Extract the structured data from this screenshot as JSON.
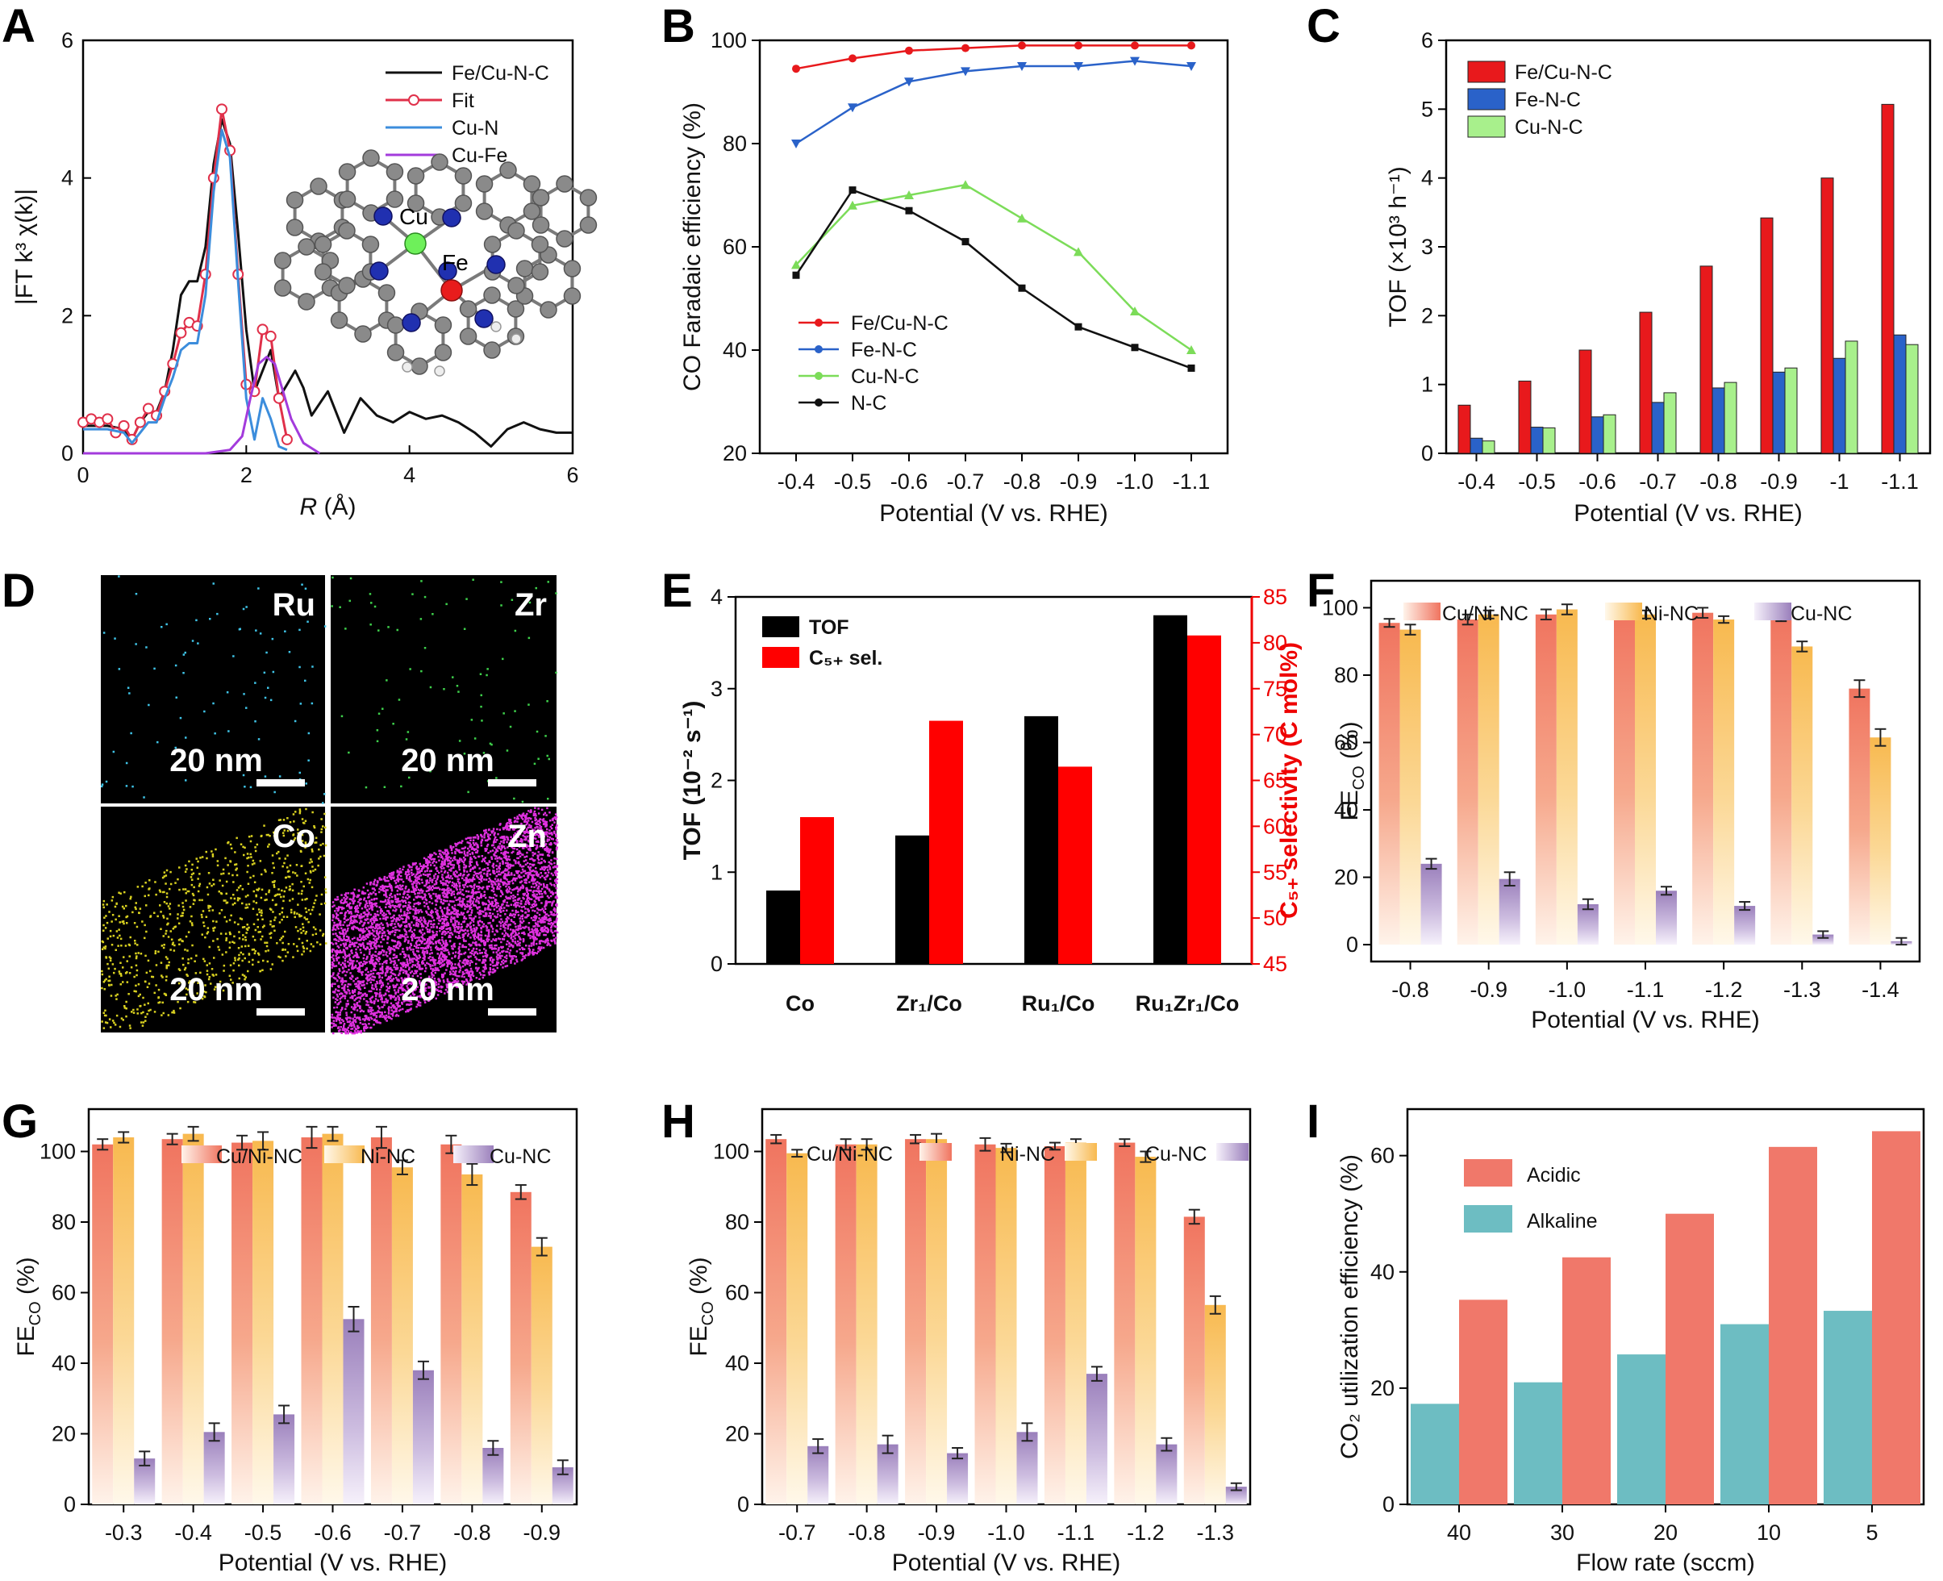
{
  "colors": {
    "red": "#e8191c",
    "blue": "#2a62c9",
    "green": "#7cdc59",
    "black": "#111111",
    "lightgreen": "#a8f08c",
    "orange": "#f0786a",
    "teal": "#6dbdc2",
    "amber": "#f7c46c",
    "purple": "#9d83bd",
    "fitred": "#e0304a",
    "cublue": "#3c8ddc",
    "cufe": "#a33bdc"
  },
  "panels": {
    "A": {
      "letter": "A",
      "xlabel_main": "R",
      "xlabel_unit": " (Å)",
      "ylabel": "|FT k³ χ(k)|"
    },
    "B": {
      "letter": "B"
    },
    "C": {
      "letter": "C"
    },
    "D": {
      "letter": "D"
    },
    "E": {
      "letter": "E"
    },
    "F": {
      "letter": "F"
    },
    "G": {
      "letter": "G"
    },
    "H": {
      "letter": "H"
    },
    "I": {
      "letter": "I"
    }
  },
  "panel_d": {
    "maps": [
      {
        "element": "Ru",
        "scale": "20 nm",
        "color": "#3fc3e6",
        "density": 90
      },
      {
        "element": "Zr",
        "scale": "20 nm",
        "color": "#3ed04b",
        "density": 90
      },
      {
        "element": "Co",
        "scale": "20 nm",
        "color": "#d8d020",
        "density": 900
      },
      {
        "element": "Zn",
        "scale": "20 nm",
        "color": "#e030e0",
        "density": 5000
      }
    ]
  },
  "panel_a_inset": {
    "atom_labels": [
      "Cu",
      "Fe"
    ]
  },
  "chart_data": [
    {
      "id": "A",
      "type": "line",
      "title": "",
      "xlabel": "R (Å)",
      "ylabel": "|FT k³ χ(k)|",
      "xlim": [
        0,
        6
      ],
      "ylim": [
        0,
        6
      ],
      "xticks": [
        "0",
        "2",
        "4",
        "6"
      ],
      "yticks": [
        "0",
        "2",
        "4",
        "6"
      ],
      "series": [
        {
          "name": "Fe/Cu-N-C",
          "color": "#111111",
          "marker": "none",
          "x": [
            0,
            0.3,
            0.5,
            0.6,
            0.7,
            0.8,
            0.9,
            1.0,
            1.1,
            1.2,
            1.3,
            1.4,
            1.5,
            1.6,
            1.7,
            1.8,
            1.9,
            2.0,
            2.1,
            2.2,
            2.3,
            2.4,
            2.5,
            2.6,
            2.7,
            2.8,
            3.0,
            3.2,
            3.4,
            3.6,
            3.8,
            4.0,
            4.2,
            4.4,
            4.6,
            4.8,
            5.0,
            5.2,
            5.4,
            5.6,
            5.8,
            6.0
          ],
          "y": [
            0.4,
            0.4,
            0.35,
            0.2,
            0.45,
            0.6,
            0.6,
            0.9,
            1.5,
            2.3,
            2.5,
            2.5,
            3.0,
            4.2,
            4.85,
            4.5,
            3.2,
            1.8,
            0.9,
            1.2,
            1.5,
            0.8,
            1.0,
            1.2,
            0.95,
            0.55,
            0.9,
            0.3,
            0.8,
            0.55,
            0.45,
            0.6,
            0.5,
            0.55,
            0.45,
            0.3,
            0.1,
            0.35,
            0.45,
            0.35,
            0.3,
            0.3
          ]
        },
        {
          "name": "Fit",
          "color": "#e0304a",
          "marker": "circle",
          "x": [
            0,
            0.1,
            0.2,
            0.3,
            0.4,
            0.5,
            0.6,
            0.7,
            0.8,
            0.9,
            1.0,
            1.1,
            1.2,
            1.3,
            1.4,
            1.5,
            1.6,
            1.7,
            1.8,
            1.9,
            2.0,
            2.1,
            2.2,
            2.3,
            2.4,
            2.5
          ],
          "y": [
            0.45,
            0.5,
            0.45,
            0.5,
            0.3,
            0.4,
            0.2,
            0.45,
            0.65,
            0.55,
            0.9,
            1.3,
            1.75,
            1.9,
            1.85,
            2.6,
            4.0,
            5.0,
            4.4,
            2.6,
            1.0,
            0.9,
            1.8,
            1.7,
            0.8,
            0.2
          ]
        },
        {
          "name": "Cu-N",
          "color": "#3c8ddc",
          "marker": "none",
          "x": [
            0,
            0.3,
            0.5,
            0.6,
            0.7,
            0.8,
            0.9,
            1.0,
            1.1,
            1.2,
            1.3,
            1.4,
            1.5,
            1.6,
            1.7,
            1.8,
            1.9,
            2.0,
            2.1,
            2.2,
            2.3,
            2.4,
            2.5
          ],
          "y": [
            0.35,
            0.35,
            0.3,
            0.15,
            0.3,
            0.45,
            0.45,
            0.8,
            1.1,
            1.5,
            1.6,
            1.6,
            2.3,
            3.8,
            4.7,
            4.3,
            2.5,
            0.8,
            0.2,
            0.8,
            0.5,
            0.1,
            0.05
          ]
        },
        {
          "name": "Cu-Fe",
          "color": "#a33bdc",
          "marker": "none",
          "x": [
            0,
            1.0,
            1.5,
            1.8,
            1.95,
            2.05,
            2.15,
            2.25,
            2.35,
            2.45,
            2.55,
            2.7,
            2.9
          ],
          "y": [
            0,
            0,
            0,
            0.05,
            0.25,
            0.8,
            1.3,
            1.4,
            1.3,
            0.9,
            0.5,
            0.15,
            0
          ]
        }
      ]
    },
    {
      "id": "B",
      "type": "line",
      "xlabel": "Potential (V vs. RHE)",
      "ylabel": "CO Faradaic efficiency (%)",
      "categories": [
        "-0.4",
        "-0.5",
        "-0.6",
        "-0.7",
        "-0.8",
        "-0.9",
        "-1.0",
        "-1.1"
      ],
      "ylim": [
        20,
        100
      ],
      "yticks": [
        "20",
        "40",
        "60",
        "80",
        "100"
      ],
      "legend_position": "bottom-left",
      "series": [
        {
          "name": "Fe/Cu-N-C",
          "color": "#e8191c",
          "marker": "circle",
          "values": [
            94.5,
            96.5,
            98,
            98.5,
            99,
            99,
            99,
            99
          ]
        },
        {
          "name": "Fe-N-C",
          "color": "#2a62c9",
          "marker": "triangle-down",
          "values": [
            80,
            87,
            92,
            94,
            95,
            95,
            96,
            95
          ]
        },
        {
          "name": "Cu-N-C",
          "color": "#7cdc59",
          "marker": "triangle-up",
          "values": [
            56.5,
            68,
            70,
            72,
            65.5,
            59,
            47.5,
            40
          ]
        },
        {
          "name": "N-C",
          "color": "#111111",
          "marker": "square",
          "values": [
            54.5,
            71,
            67,
            61,
            52,
            44.5,
            40.5,
            36.5
          ]
        }
      ]
    },
    {
      "id": "C",
      "type": "bar",
      "xlabel": "Potential (V vs. RHE)",
      "ylabel": "TOF (×10³ h⁻¹)",
      "categories": [
        "-0.4",
        "-0.5",
        "-0.6",
        "-0.7",
        "-0.8",
        "-0.9",
        "-1",
        "-1.1"
      ],
      "ylim": [
        0,
        6
      ],
      "yticks": [
        "0",
        "1",
        "2",
        "3",
        "4",
        "5",
        "6"
      ],
      "legend_position": "top-left",
      "series": [
        {
          "name": "Fe/Cu-N-C",
          "color": "#e8191c",
          "values": [
            0.7,
            1.05,
            1.5,
            2.05,
            2.72,
            3.42,
            4.0,
            5.07
          ]
        },
        {
          "name": "Fe-N-C",
          "color": "#2a62c9",
          "values": [
            0.22,
            0.38,
            0.53,
            0.74,
            0.95,
            1.18,
            1.38,
            1.72
          ]
        },
        {
          "name": "Cu-N-C",
          "color": "#a8f08c",
          "values": [
            0.18,
            0.37,
            0.56,
            0.88,
            1.03,
            1.24,
            1.63,
            1.58
          ]
        }
      ]
    },
    {
      "id": "E",
      "type": "bar",
      "xlabel": "",
      "ylabel": "TOF (10⁻² s⁻¹)",
      "ylabel_right": "C₅₊ selectivity (C mol%)",
      "categories": [
        "Co",
        "Zr₁/Co",
        "Ru₁/Co",
        "Ru₁Zr₁/Co"
      ],
      "ylim": [
        0,
        4
      ],
      "yticks": [
        "0",
        "1",
        "2",
        "3",
        "4"
      ],
      "ylim_right": [
        45,
        85
      ],
      "yticks_right": [
        "45",
        "50",
        "55",
        "60",
        "65",
        "70",
        "75",
        "80",
        "85"
      ],
      "legend_position": "top-left",
      "series": [
        {
          "name": "TOF",
          "color": "#000000",
          "axis": "left",
          "values": [
            0.8,
            1.4,
            2.7,
            3.8
          ]
        },
        {
          "name": "C₅₊ sel.",
          "color": "#ff0000",
          "axis": "right",
          "values": [
            61,
            71.5,
            66.5,
            80.8
          ]
        }
      ]
    },
    {
      "id": "F",
      "type": "bar",
      "xlabel": "Potential (V vs. RHE)",
      "ylabel": "FECO (%)",
      "categories": [
        "-0.8",
        "-0.9",
        "-1.0",
        "-1.1",
        "-1.2",
        "-1.3",
        "-1.4"
      ],
      "ylim": [
        -5,
        108
      ],
      "yticks": [
        "0",
        "20",
        "40",
        "60",
        "80",
        "100"
      ],
      "legend_position": "top",
      "series": [
        {
          "name": "Cu/Ni-NC",
          "color": "#f0786a",
          "values": [
            95.5,
            96.5,
            98,
            99.5,
            98.5,
            97.5,
            76
          ],
          "errors": [
            1.2,
            1.5,
            1.5,
            1.5,
            1.5,
            1.5,
            2.5
          ]
        },
        {
          "name": "Ni-NC",
          "color": "#f7c46c",
          "values": [
            93.5,
            98,
            99.5,
            98,
            96.5,
            88.5,
            61.5
          ],
          "errors": [
            1.5,
            1.2,
            1.5,
            1.2,
            1.0,
            1.5,
            2.5
          ]
        },
        {
          "name": "Cu-NC",
          "color": "#9d83bd",
          "values": [
            24,
            19.5,
            12,
            16,
            11.5,
            3,
            1
          ],
          "errors": [
            1.5,
            2,
            1.5,
            1.2,
            1.2,
            1,
            1
          ]
        }
      ]
    },
    {
      "id": "G",
      "type": "bar",
      "xlabel": "Potential (V vs. RHE)",
      "ylabel": "FECO (%)",
      "categories": [
        "-0.3",
        "-0.4",
        "-0.5",
        "-0.6",
        "-0.7",
        "-0.8",
        "-0.9"
      ],
      "ylim": [
        0,
        112
      ],
      "yticks": [
        "0",
        "20",
        "40",
        "60",
        "80",
        "100"
      ],
      "legend_position": "top",
      "series": [
        {
          "name": "Cu/Ni-NC",
          "color": "#f0786a",
          "values": [
            102,
            103.5,
            102.5,
            104,
            104,
            102,
            88.5
          ],
          "errors": [
            1.5,
            1.5,
            2,
            3,
            3,
            2.5,
            2
          ]
        },
        {
          "name": "Ni-NC",
          "color": "#f7c46c",
          "values": [
            104,
            105,
            103,
            105,
            95.5,
            93.5,
            73
          ],
          "errors": [
            1.5,
            2,
            2.5,
            2,
            2,
            3,
            2.5
          ]
        },
        {
          "name": "Cu-NC",
          "color": "#9d83bd",
          "values": [
            13,
            20.5,
            25.5,
            52.5,
            38,
            16,
            10.5
          ],
          "errors": [
            2,
            2.5,
            2.5,
            3.5,
            2.5,
            2,
            2
          ]
        }
      ]
    },
    {
      "id": "H",
      "type": "bar",
      "xlabel": "Potential (V vs. RHE)",
      "ylabel": "FECO (%)",
      "categories": [
        "-0.7",
        "-0.8",
        "-0.9",
        "-1.0",
        "-1.1",
        "-1.2",
        "-1.3"
      ],
      "ylim": [
        0,
        112
      ],
      "yticks": [
        "0",
        "20",
        "40",
        "60",
        "80",
        "100"
      ],
      "legend_position": "top",
      "series": [
        {
          "name": "Cu/Ni-NC",
          "color": "#f0786a",
          "values": [
            103.5,
            102,
            103.5,
            102,
            101.5,
            102.5,
            81.5
          ],
          "errors": [
            1.2,
            1.5,
            1.2,
            1.8,
            1.0,
            1.0,
            2
          ]
        },
        {
          "name": "Ni-NC",
          "color": "#f7c46c",
          "values": [
            99.5,
            102,
            103.5,
            101,
            102.5,
            98.5,
            56.5
          ],
          "errors": [
            1.0,
            1.5,
            1.5,
            1.2,
            1.0,
            1.5,
            2.5
          ]
        },
        {
          "name": "Cu-NC",
          "color": "#9d83bd",
          "values": [
            16.5,
            17,
            14.5,
            20.5,
            37,
            17,
            5
          ],
          "errors": [
            2,
            2.5,
            1.5,
            2.5,
            2,
            1.8,
            1
          ]
        }
      ]
    },
    {
      "id": "I",
      "type": "bar",
      "xlabel": "Flow rate (sccm)",
      "ylabel": "CO₂ utilization efficiency (%)",
      "categories": [
        "40",
        "30",
        "20",
        "10",
        "5"
      ],
      "ylim": [
        0,
        68
      ],
      "yticks": [
        "0",
        "20",
        "40",
        "60"
      ],
      "legend_position": "top-left",
      "series": [
        {
          "name": "Alkaline",
          "color": "#6dbdc2",
          "values": [
            17.3,
            21,
            25.8,
            31,
            33.3
          ]
        },
        {
          "name": "Acidic",
          "color": "#f0786a",
          "values": [
            35.2,
            42.5,
            50,
            61.5,
            64.2
          ]
        }
      ],
      "legend_order": [
        "Acidic",
        "Alkaline"
      ]
    }
  ]
}
